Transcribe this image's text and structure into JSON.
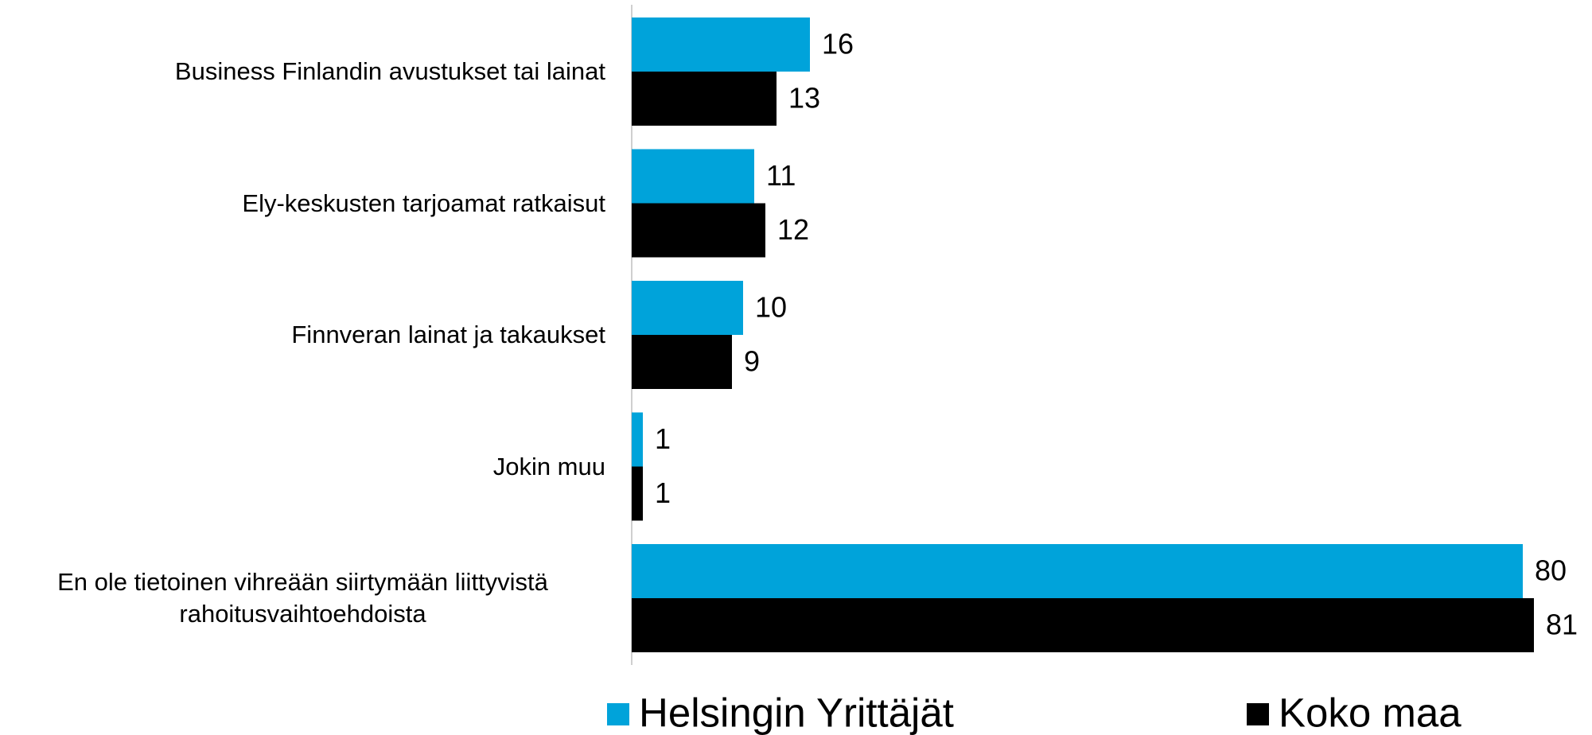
{
  "chart_data": {
    "type": "hbar",
    "categories": [
      "Business Finlandin avustukset tai lainat",
      "Ely-keskusten tarjoamat ratkaisut",
      "Finnveran lainat ja takaukset",
      "Jokin muu",
      "En ole tietoinen vihreään siirtymään liittyvistä rahoitusvaihtoehdoista"
    ],
    "series": [
      {
        "name": "Helsingin Yrittäjät",
        "color": "#00a3da",
        "values": [
          16,
          11,
          10,
          1,
          80
        ]
      },
      {
        "name": "Koko maa",
        "color": "#000000",
        "values": [
          13,
          12,
          9,
          1,
          81
        ]
      }
    ]
  }
}
